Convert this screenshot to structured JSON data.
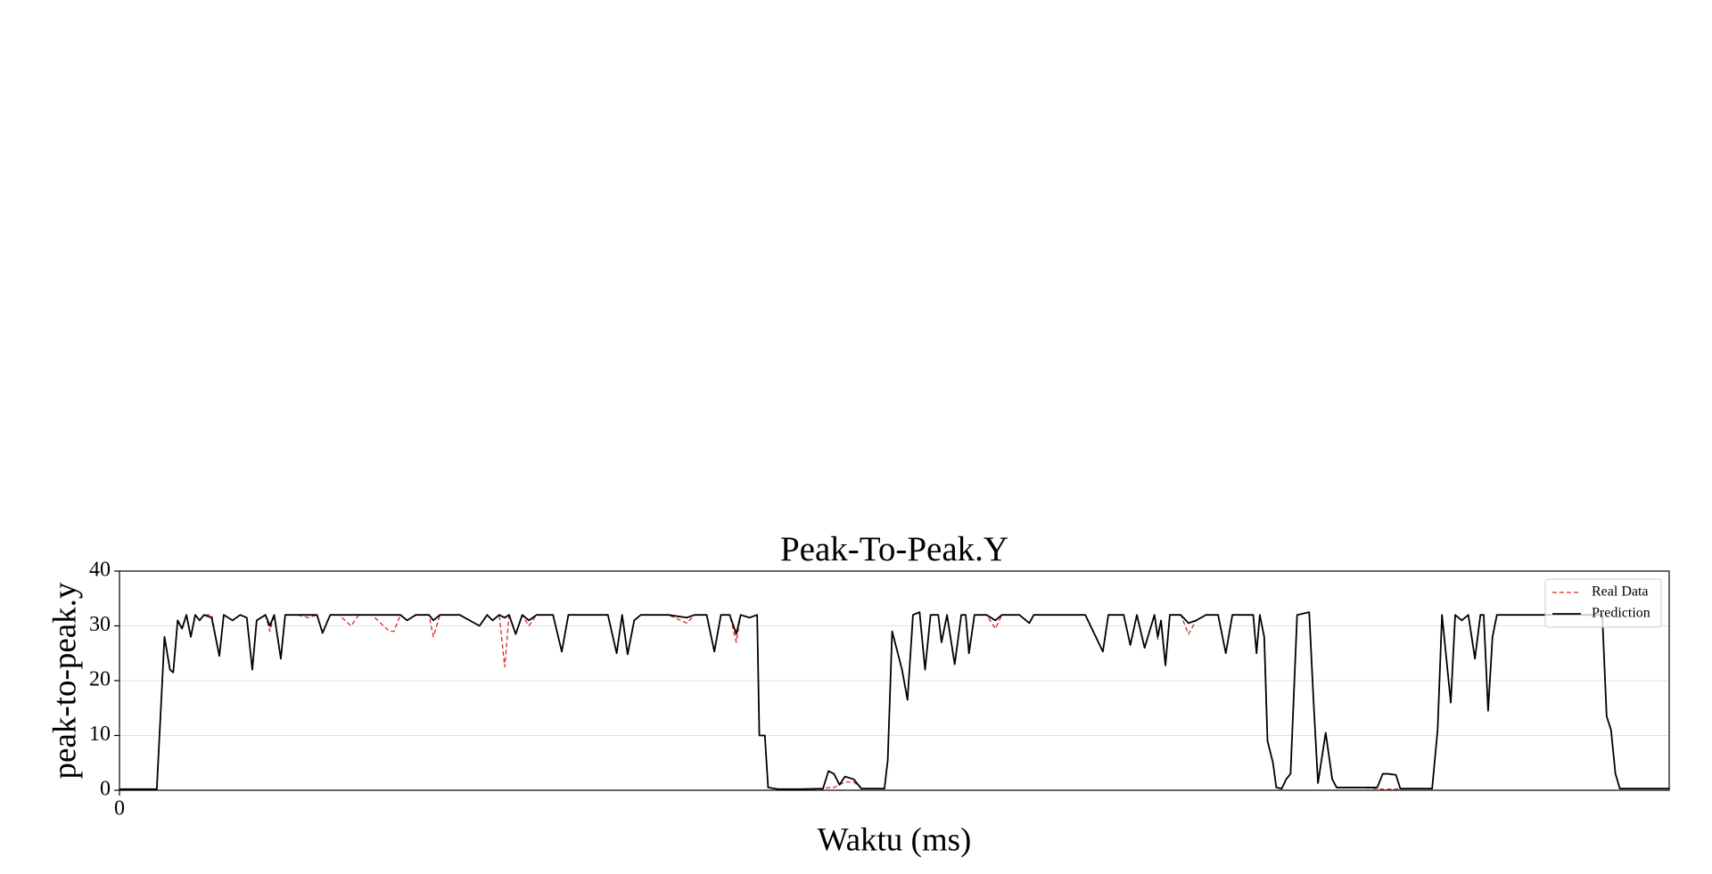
{
  "chart_data": {
    "type": "line",
    "title": "Peak-To-Peak.Y",
    "xlabel": "Waktu (ms)",
    "ylabel": "peak-to-peak.y",
    "x": [
      0,
      34,
      41,
      46,
      49,
      53,
      57,
      61,
      65,
      69,
      73,
      77,
      84,
      91,
      95,
      103,
      110,
      116,
      121,
      125,
      133,
      137,
      141,
      147,
      151,
      162,
      172,
      180,
      185,
      192,
      200,
      211,
      218,
      230,
      246,
      250,
      256,
      262,
      270,
      282,
      286,
      292,
      310,
      328,
      335,
      340,
      346,
      351,
      355,
      361,
      367,
      373,
      380,
      395,
      403,
      409,
      430,
      445,
      453,
      458,
      463,
      469,
      475,
      500,
      517,
      524,
      535,
      542,
      548,
      556,
      562,
      566,
      574,
      581,
      583,
      588,
      591,
      600,
      620,
      641,
      646,
      651,
      656,
      661,
      669,
      676,
      697,
      700,
      704,
      713,
      718,
      723,
      729,
      734,
      739,
      746,
      749,
      754,
      761,
      767,
      771,
      774,
      779,
      790,
      798,
      804,
      820,
      829,
      833,
      860,
      880,
      896,
      901,
      915,
      921,
      927,
      934,
      943,
      946,
      949,
      953,
      957,
      967,
      974,
      981,
      990,
      1001,
      1008,
      1014,
      1033,
      1036,
      1039,
      1043,
      1046,
      1051,
      1054,
      1059,
      1063,
      1067,
      1073,
      1084,
      1088,
      1092,
      1099,
      1105,
      1109,
      1130,
      1146,
      1151,
      1156,
      1163,
      1167,
      1196,
      1201,
      1205,
      1209,
      1213,
      1217,
      1223,
      1229,
      1235,
      1240,
      1243,
      1247,
      1251,
      1255,
      1300,
      1340,
      1351,
      1355,
      1359,
      1363,
      1367,
      1412
    ],
    "series": [
      {
        "name": "Real Data",
        "color": "#d62728",
        "dash": true,
        "values": [
          0.2,
          0.2,
          28,
          22,
          21.5,
          31,
          29.5,
          32,
          28,
          32,
          31,
          32,
          32,
          24.5,
          32,
          31,
          32,
          31.5,
          22,
          31,
          32,
          29,
          32,
          24,
          32,
          32,
          31.5,
          32,
          28.7,
          32,
          32,
          30,
          32,
          32,
          29,
          29,
          32,
          31,
          32,
          32,
          28,
          32,
          32,
          30,
          32,
          31,
          32,
          22.5,
          32,
          28.5,
          32,
          30,
          32,
          32,
          25.3,
          32,
          32,
          32,
          25,
          32,
          24.8,
          31,
          32,
          32,
          30.5,
          32,
          32,
          25.3,
          32,
          32,
          27,
          32,
          31.5,
          32,
          10,
          10,
          0.5,
          0.2,
          0.2,
          0.2,
          0.5,
          0.5,
          1,
          1.5,
          1.5,
          0.3,
          0.3,
          5.5,
          29,
          22,
          16.5,
          32,
          32.5,
          22,
          32,
          32,
          27,
          32,
          23,
          32,
          32,
          25,
          32,
          32,
          29.5,
          32,
          32,
          30.5,
          32,
          32,
          32,
          25.3,
          32,
          32,
          26.5,
          32,
          26,
          32,
          27.5,
          31,
          22.8,
          32,
          32,
          28.5,
          31,
          32,
          32,
          25,
          32,
          32,
          25,
          32,
          28,
          9,
          5,
          0.5,
          0.3,
          2,
          3,
          32,
          32.5,
          16,
          1.3,
          10.5,
          2,
          0.5,
          0.5,
          0.3,
          0.2,
          0.2,
          0.2,
          0.3,
          0.3,
          11,
          32,
          24,
          16,
          32,
          31,
          32,
          24,
          32,
          32,
          14.5,
          28,
          32,
          32,
          32,
          32,
          13.5,
          11,
          3,
          0.3,
          0.3
        ]
      },
      {
        "name": "Prediction",
        "color": "#000000",
        "dash": false,
        "values": [
          0.2,
          0.2,
          28,
          22,
          21.5,
          31,
          29.5,
          32,
          28,
          32,
          31,
          32,
          31.5,
          24.5,
          32,
          31,
          32,
          31.5,
          22,
          31,
          32,
          30,
          32,
          24,
          32,
          32,
          32,
          32,
          28.7,
          32,
          32,
          32,
          32,
          32,
          32,
          32,
          32,
          31,
          32,
          32,
          31,
          32,
          32,
          30,
          32,
          31,
          32,
          31.5,
          32,
          28.5,
          32,
          31,
          32,
          32,
          25.3,
          32,
          32,
          32,
          25,
          32,
          24.8,
          31,
          32,
          32,
          31.5,
          32,
          32,
          25.3,
          32,
          32,
          28.5,
          32,
          31.5,
          32,
          10,
          10,
          0.5,
          0.2,
          0.2,
          0.3,
          3.5,
          3,
          1,
          2.5,
          2,
          0.3,
          0.3,
          5.5,
          29,
          22,
          16.5,
          32,
          32.5,
          22,
          32,
          32,
          27,
          32,
          23,
          32,
          32,
          25,
          32,
          32,
          31,
          32,
          32,
          30.5,
          32,
          32,
          32,
          25.3,
          32,
          32,
          26.5,
          32,
          26,
          32,
          28,
          31,
          22.8,
          32,
          32,
          30.5,
          31,
          32,
          32,
          25,
          32,
          32,
          25,
          32,
          28,
          9,
          5,
          0.5,
          0.3,
          2,
          3,
          32,
          32.5,
          16,
          1.3,
          10.5,
          2,
          0.5,
          0.5,
          0.5,
          3,
          3,
          2.8,
          0.3,
          0.3,
          11,
          32,
          24,
          16,
          32,
          31,
          32,
          24,
          32,
          32,
          14.5,
          28,
          32,
          32,
          32,
          32,
          13.5,
          11,
          3,
          0.3,
          0.3
        ]
      }
    ],
    "xlim": [
      0,
      1412
    ],
    "xticks": [
      0
    ],
    "ylim": [
      0,
      40
    ],
    "yticks": [
      0,
      10,
      20,
      30,
      40
    ],
    "grid": true,
    "legend": "upper right"
  }
}
